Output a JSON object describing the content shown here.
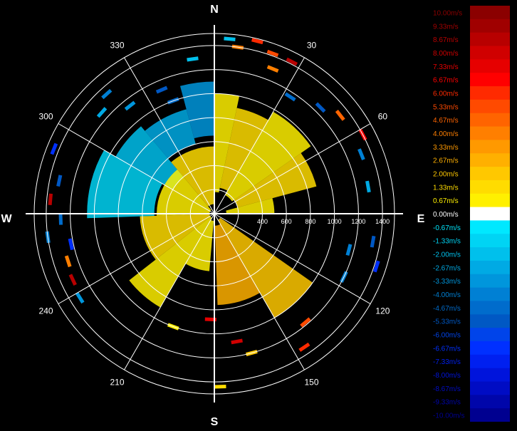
{
  "chart_data": {
    "type": "polar-radar",
    "cardinals": {
      "north": "N",
      "east": "E",
      "south": "S",
      "west": "W"
    },
    "angle_labels": [
      {
        "deg": 30,
        "text": "30"
      },
      {
        "deg": 60,
        "text": "60"
      },
      {
        "deg": 120,
        "text": "120"
      },
      {
        "deg": 150,
        "text": "150"
      },
      {
        "deg": 210,
        "text": "210"
      },
      {
        "deg": 240,
        "text": "240"
      },
      {
        "deg": 300,
        "text": "300"
      },
      {
        "deg": 330,
        "text": "330"
      }
    ],
    "range_ticks": [
      {
        "value": 400,
        "text": "400"
      },
      {
        "value": 600,
        "text": "600"
      },
      {
        "value": 800,
        "text": "800"
      },
      {
        "value": 1000,
        "text": "1000"
      },
      {
        "value": 1200,
        "text": "1200"
      },
      {
        "value": 1400,
        "text": "1400"
      }
    ],
    "range_max": 1500,
    "rings": [
      200,
      400,
      600,
      800,
      1000,
      1200,
      1400
    ],
    "colorscale": [
      {
        "value": 10.0,
        "label": "10.00m/s",
        "color": "#8b0000"
      },
      {
        "value": 9.33,
        "label": "9.33m/s",
        "color": "#a00000"
      },
      {
        "value": 8.67,
        "label": "8.67m/s",
        "color": "#b80000"
      },
      {
        "value": 8.0,
        "label": "8.00m/s",
        "color": "#d00000"
      },
      {
        "value": 7.33,
        "label": "7.33m/s",
        "color": "#e60000"
      },
      {
        "value": 6.67,
        "label": "6.67m/s",
        "color": "#ff0000"
      },
      {
        "value": 6.0,
        "label": "6.00m/s",
        "color": "#ff2a00"
      },
      {
        "value": 5.33,
        "label": "5.33m/s",
        "color": "#ff4a00"
      },
      {
        "value": 4.67,
        "label": "4.67m/s",
        "color": "#ff6400"
      },
      {
        "value": 4.0,
        "label": "4.00m/s",
        "color": "#ff7f00"
      },
      {
        "value": 3.33,
        "label": "3.33m/s",
        "color": "#ff9900"
      },
      {
        "value": 2.67,
        "label": "2.67m/s",
        "color": "#ffb000"
      },
      {
        "value": 2.0,
        "label": "2.00m/s",
        "color": "#ffc800"
      },
      {
        "value": 1.33,
        "label": "1.33m/s",
        "color": "#ffdc00"
      },
      {
        "value": 0.67,
        "label": "0.67m/s",
        "color": "#fff000"
      },
      {
        "value": 0.0,
        "label": "0.00m/s",
        "color": "#ffffff"
      },
      {
        "value": -0.67,
        "label": "-0.67m/s",
        "color": "#00e8ff"
      },
      {
        "value": -1.33,
        "label": "-1.33m/s",
        "color": "#00d4f4"
      },
      {
        "value": -2.0,
        "label": "-2.00m/s",
        "color": "#00c0ec"
      },
      {
        "value": -2.67,
        "label": "-2.67m/s",
        "color": "#00aae4"
      },
      {
        "value": -3.33,
        "label": "-3.33m/s",
        "color": "#0096dc"
      },
      {
        "value": -4.0,
        "label": "-4.00m/s",
        "color": "#0080d4"
      },
      {
        "value": -4.67,
        "label": "-4.67m/s",
        "color": "#006ccc"
      },
      {
        "value": -5.33,
        "label": "-5.33m/s",
        "color": "#0058c4"
      },
      {
        "value": -6.0,
        "label": "-6.00m/s",
        "color": "#0044ea"
      },
      {
        "value": -6.67,
        "label": "-6.67m/s",
        "color": "#0030ff"
      },
      {
        "value": -7.33,
        "label": "-7.33m/s",
        "color": "#0020f0"
      },
      {
        "value": -8.0,
        "label": "-8.00m/s",
        "color": "#0014dc"
      },
      {
        "value": -8.67,
        "label": "-8.67m/s",
        "color": "#000cc4"
      },
      {
        "value": -9.33,
        "label": "-9.33m/s",
        "color": "#0006aa"
      },
      {
        "value": -10.0,
        "label": "-10.00m/s",
        "color": "#000090"
      }
    ],
    "sectors": [
      {
        "az_start": 0,
        "az_end": 12,
        "r_start": 180,
        "r_end": 1000,
        "velocity": 0.67
      },
      {
        "az_start": 12,
        "az_end": 30,
        "r_start": 220,
        "r_end": 900,
        "velocity": 1.33
      },
      {
        "az_start": 30,
        "az_end": 55,
        "r_start": 180,
        "r_end": 980,
        "velocity": 0.67
      },
      {
        "az_start": 55,
        "az_end": 75,
        "r_start": 200,
        "r_end": 880,
        "velocity": 1.33
      },
      {
        "az_start": 75,
        "az_end": 90,
        "r_start": 100,
        "r_end": 500,
        "velocity": 0.67
      },
      {
        "az_start": 125,
        "az_end": 150,
        "r_start": 60,
        "r_end": 1000,
        "velocity": 2.0
      },
      {
        "az_start": 150,
        "az_end": 178,
        "r_start": 100,
        "r_end": 760,
        "velocity": 2.67
      },
      {
        "az_start": 185,
        "az_end": 210,
        "r_start": 60,
        "r_end": 480,
        "velocity": 0.67
      },
      {
        "az_start": 210,
        "az_end": 232,
        "r_start": 40,
        "r_end": 900,
        "velocity": 0.67
      },
      {
        "az_start": 232,
        "az_end": 268,
        "r_start": 40,
        "r_end": 620,
        "velocity": 1.33
      },
      {
        "az_start": 268,
        "az_end": 300,
        "r_start": 500,
        "r_end": 1060,
        "velocity": -1.33
      },
      {
        "az_start": 300,
        "az_end": 320,
        "r_start": 400,
        "r_end": 950,
        "velocity": -2.0
      },
      {
        "az_start": 320,
        "az_end": 345,
        "r_start": 600,
        "r_end": 900,
        "velocity": -2.67
      },
      {
        "az_start": 345,
        "az_end": 360,
        "r_start": 650,
        "r_end": 1100,
        "velocity": -3.33
      },
      {
        "az_start": 268,
        "az_end": 320,
        "r_start": 40,
        "r_end": 480,
        "velocity": 0.67
      },
      {
        "az_start": 320,
        "az_end": 360,
        "r_start": 80,
        "r_end": 560,
        "velocity": 1.33
      }
    ],
    "echoes": [
      {
        "az": 5,
        "r": 1460,
        "velocity": -2.0
      },
      {
        "az": 8,
        "r": 1400,
        "velocity": 4.0
      },
      {
        "az": 14,
        "r": 1480,
        "velocity": 6.0
      },
      {
        "az": 20,
        "r": 1420,
        "velocity": 5.33
      },
      {
        "az": 22,
        "r": 1300,
        "velocity": 4.0
      },
      {
        "az": 27,
        "r": 1420,
        "velocity": 8.67
      },
      {
        "az": 33,
        "r": 1160,
        "velocity": -4.67
      },
      {
        "az": 45,
        "r": 1250,
        "velocity": -5.33
      },
      {
        "az": 52,
        "r": 1330,
        "velocity": 4.67
      },
      {
        "az": 62,
        "r": 1400,
        "velocity": 6.67
      },
      {
        "az": 68,
        "r": 1320,
        "velocity": -4.0
      },
      {
        "az": 80,
        "r": 1300,
        "velocity": -2.67
      },
      {
        "az": 100,
        "r": 1340,
        "velocity": -5.33
      },
      {
        "az": 105,
        "r": 1160,
        "velocity": -4.0
      },
      {
        "az": 108,
        "r": 1420,
        "velocity": -6.67
      },
      {
        "az": 116,
        "r": 1200,
        "velocity": -4.0
      },
      {
        "az": 140,
        "r": 1180,
        "velocity": 5.33
      },
      {
        "az": 146,
        "r": 1340,
        "velocity": 6.0
      },
      {
        "az": 165,
        "r": 1200,
        "velocity": 2.0
      },
      {
        "az": 170,
        "r": 1080,
        "velocity": 8.0
      },
      {
        "az": 178,
        "r": 1440,
        "velocity": 1.33
      },
      {
        "az": 182,
        "r": 880,
        "velocity": 7.33
      },
      {
        "az": 200,
        "r": 1000,
        "velocity": 0.67
      },
      {
        "az": 238,
        "r": 1320,
        "velocity": -3.33
      },
      {
        "az": 245,
        "r": 1300,
        "velocity": 8.67
      },
      {
        "az": 252,
        "r": 1280,
        "velocity": 4.0
      },
      {
        "az": 258,
        "r": 1220,
        "velocity": -6.67
      },
      {
        "az": 262,
        "r": 1400,
        "velocity": -4.0
      },
      {
        "az": 268,
        "r": 1280,
        "velocity": -4.67
      },
      {
        "az": 275,
        "r": 1370,
        "velocity": 8.67
      },
      {
        "az": 282,
        "r": 1320,
        "velocity": -5.33
      },
      {
        "az": 292,
        "r": 1440,
        "velocity": -6.67
      },
      {
        "az": 312,
        "r": 1260,
        "velocity": -2.67
      },
      {
        "az": 318,
        "r": 1340,
        "velocity": -4.0
      },
      {
        "az": 322,
        "r": 1140,
        "velocity": -3.33
      },
      {
        "az": 337,
        "r": 1120,
        "velocity": -5.33
      },
      {
        "az": 340,
        "r": 1000,
        "velocity": -4.67
      },
      {
        "az": 352,
        "r": 1300,
        "velocity": -2.0
      }
    ]
  }
}
